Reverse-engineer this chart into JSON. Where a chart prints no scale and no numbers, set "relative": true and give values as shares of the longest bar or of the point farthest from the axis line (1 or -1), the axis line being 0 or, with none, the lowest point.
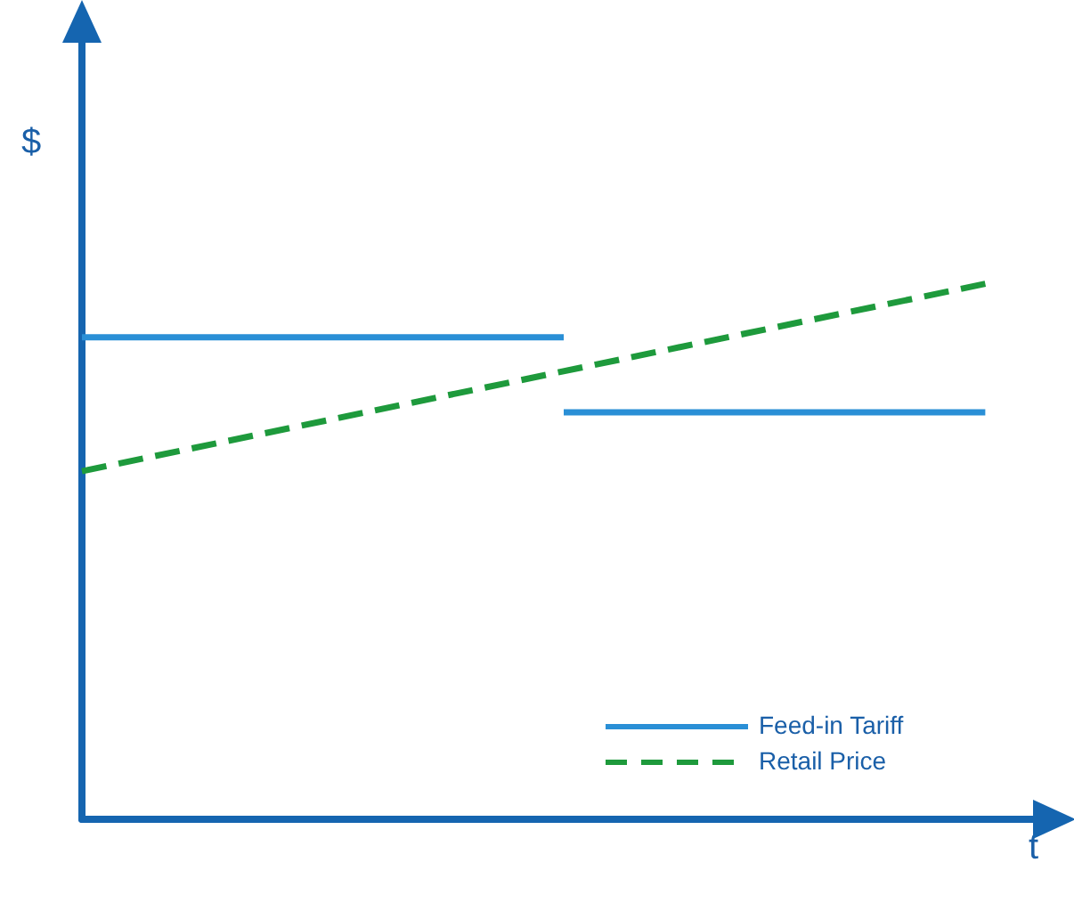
{
  "chart_data": {
    "type": "line",
    "relative": true,
    "xlabel": "t",
    "ylabel": "$",
    "legend": "bottom right",
    "marker": "none",
    "grid": false,
    "categories": [
      null,
      null,
      null,
      null,
      null,
      null,
      null,
      null,
      null,
      null,
      null,
      null,
      null,
      null,
      null,
      null,
      null
    ],
    "series": [
      {
        "name": "Feed-in Tariff",
        "color": "#2a8fd6",
        "line_style": "solid",
        "values": [
          0.9,
          0.9,
          0.9,
          0.9,
          0.9,
          0.9,
          0.9,
          0.9,
          0.9,
          null,
          null,
          null,
          null,
          null,
          null,
          null,
          null
        ]
      },
      {
        "color": "#2a8fd6",
        "line_style": "solid",
        "values": [
          null,
          null,
          null,
          null,
          null,
          null,
          null,
          null,
          0.76,
          0.76,
          0.76,
          0.76,
          0.76,
          0.76,
          0.76,
          0.76,
          null
        ]
      },
      {
        "name": "Retail Price",
        "color": "#1e9a3c",
        "line_style": "dashed",
        "values": [
          0.65,
          null,
          null,
          null,
          null,
          null,
          null,
          null,
          null,
          null,
          null,
          null,
          null,
          null,
          null,
          1,
          null
        ]
      }
    ]
  }
}
